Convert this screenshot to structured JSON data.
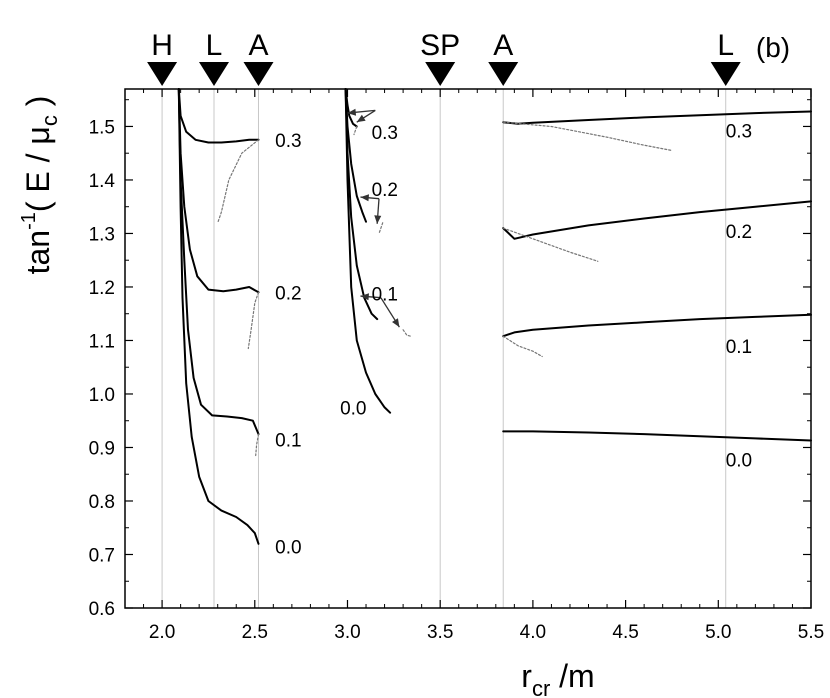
{
  "panel_label": "(b)",
  "chart_data": {
    "type": "line",
    "xlabel_main": "r",
    "xlabel_sub": "cr",
    "xlabel_suffix": " /m",
    "ylabel_main": "tan",
    "ylabel_sup": "-1",
    "ylabel_mid": "( E / μ",
    "ylabel_sub": "c",
    "ylabel_end": " )",
    "xlim": [
      1.8,
      5.5
    ],
    "ylim": [
      0.6,
      1.57
    ],
    "xticks": [
      "2.0",
      "2.5",
      "3.0",
      "3.5",
      "4.0",
      "4.5",
      "5.0",
      "5.5"
    ],
    "yticks": [
      "0.6",
      "0.7",
      "0.8",
      "0.9",
      "1.0",
      "1.1",
      "1.2",
      "1.3",
      "1.4",
      "1.5"
    ],
    "xtick_values": [
      2.0,
      2.5,
      3.0,
      3.5,
      4.0,
      4.5,
      5.0,
      5.5
    ],
    "ytick_values": [
      0.6,
      0.7,
      0.8,
      0.9,
      1.0,
      1.1,
      1.2,
      1.3,
      1.4,
      1.5
    ],
    "markers": [
      {
        "label": "H",
        "x": 2.0
      },
      {
        "label": "L",
        "x": 2.28
      },
      {
        "label": "A",
        "x": 2.52
      },
      {
        "label": "SP",
        "x": 3.5
      },
      {
        "label": "A",
        "x": 3.84
      },
      {
        "label": "L",
        "x": 5.04
      }
    ],
    "series_labels": [
      {
        "text": "0.3",
        "x": 2.61,
        "y": 1.475
      },
      {
        "text": "0.2",
        "x": 2.61,
        "y": 1.19
      },
      {
        "text": "0.1",
        "x": 2.61,
        "y": 0.915
      },
      {
        "text": "0.0",
        "x": 2.61,
        "y": 0.715
      },
      {
        "text": "0.3",
        "x": 3.13,
        "y": 1.49
      },
      {
        "text": "0.2",
        "x": 3.13,
        "y": 1.383
      },
      {
        "text": "0.1",
        "x": 3.13,
        "y": 1.188
      },
      {
        "text": "0.0",
        "x": 2.96,
        "y": 0.975
      },
      {
        "text": "0.3",
        "x": 5.04,
        "y": 1.492
      },
      {
        "text": "0.2",
        "x": 5.04,
        "y": 1.305
      },
      {
        "text": "0.1",
        "x": 5.04,
        "y": 1.09
      },
      {
        "text": "0.0",
        "x": 5.04,
        "y": 0.878
      }
    ],
    "arrows": [
      {
        "from": [
          3.15,
          1.53
        ],
        "to": [
          3.0,
          1.525
        ]
      },
      {
        "from": [
          3.15,
          1.53
        ],
        "to": [
          3.05,
          1.508
        ]
      },
      {
        "from": [
          3.17,
          1.365
        ],
        "to": [
          3.07,
          1.368
        ]
      },
      {
        "from": [
          3.17,
          1.365
        ],
        "to": [
          3.16,
          1.318
        ]
      },
      {
        "from": [
          3.18,
          1.18
        ],
        "to": [
          3.07,
          1.183
        ]
      },
      {
        "from": [
          3.18,
          1.18
        ],
        "to": [
          3.28,
          1.125
        ]
      }
    ],
    "series": [
      {
        "name": "0.0",
        "style": "solid",
        "points": [
          [
            2.09,
            1.57
          ],
          [
            2.1,
            1.35
          ],
          [
            2.11,
            1.18
          ],
          [
            2.13,
            1.02
          ],
          [
            2.16,
            0.92
          ],
          [
            2.2,
            0.845
          ],
          [
            2.25,
            0.8
          ],
          [
            2.32,
            0.782
          ],
          [
            2.4,
            0.77
          ],
          [
            2.46,
            0.755
          ],
          [
            2.5,
            0.74
          ],
          [
            2.52,
            0.72
          ]
        ]
      },
      {
        "name": "0.1",
        "style": "solid",
        "points": [
          [
            2.09,
            1.57
          ],
          [
            2.1,
            1.4
          ],
          [
            2.12,
            1.25
          ],
          [
            2.14,
            1.12
          ],
          [
            2.17,
            1.03
          ],
          [
            2.21,
            0.98
          ],
          [
            2.27,
            0.96
          ],
          [
            2.35,
            0.958
          ],
          [
            2.43,
            0.955
          ],
          [
            2.49,
            0.95
          ],
          [
            2.52,
            0.925
          ]
        ]
      },
      {
        "name": "0.1",
        "style": "dotted",
        "points": [
          [
            2.52,
            0.925
          ],
          [
            2.51,
            0.905
          ],
          [
            2.505,
            0.885
          ]
        ]
      },
      {
        "name": "0.2",
        "style": "solid",
        "points": [
          [
            2.09,
            1.57
          ],
          [
            2.1,
            1.45
          ],
          [
            2.12,
            1.35
          ],
          [
            2.15,
            1.27
          ],
          [
            2.19,
            1.22
          ],
          [
            2.25,
            1.195
          ],
          [
            2.33,
            1.192
          ],
          [
            2.4,
            1.195
          ],
          [
            2.47,
            1.2
          ],
          [
            2.52,
            1.19
          ]
        ]
      },
      {
        "name": "0.2",
        "style": "dotted",
        "points": [
          [
            2.52,
            1.19
          ],
          [
            2.5,
            1.17
          ],
          [
            2.48,
            1.12
          ],
          [
            2.465,
            1.085
          ]
        ]
      },
      {
        "name": "0.3",
        "style": "solid",
        "points": [
          [
            2.09,
            1.57
          ],
          [
            2.1,
            1.52
          ],
          [
            2.13,
            1.49
          ],
          [
            2.18,
            1.475
          ],
          [
            2.25,
            1.47
          ],
          [
            2.32,
            1.47
          ],
          [
            2.4,
            1.472
          ],
          [
            2.47,
            1.475
          ],
          [
            2.52,
            1.475
          ]
        ]
      },
      {
        "name": "0.3",
        "style": "dotted",
        "points": [
          [
            2.52,
            1.475
          ],
          [
            2.43,
            1.45
          ],
          [
            2.36,
            1.4
          ],
          [
            2.32,
            1.34
          ],
          [
            2.3,
            1.32
          ]
        ]
      },
      {
        "name": "0.0",
        "style": "solid",
        "points": [
          [
            2.99,
            1.57
          ],
          [
            3.0,
            1.4
          ],
          [
            3.02,
            1.2
          ],
          [
            3.05,
            1.1
          ],
          [
            3.1,
            1.04
          ],
          [
            3.15,
            1.0
          ],
          [
            3.2,
            0.975
          ],
          [
            3.23,
            0.965
          ]
        ]
      },
      {
        "name": "0.1",
        "style": "solid",
        "points": [
          [
            2.99,
            1.57
          ],
          [
            3.0,
            1.45
          ],
          [
            3.02,
            1.33
          ],
          [
            3.05,
            1.24
          ],
          [
            3.09,
            1.18
          ],
          [
            3.13,
            1.15
          ],
          [
            3.16,
            1.14
          ]
        ]
      },
      {
        "name": "0.1",
        "style": "dotted",
        "points": [
          [
            3.3,
            1.12
          ],
          [
            3.32,
            1.11
          ],
          [
            3.34,
            1.108
          ]
        ]
      },
      {
        "name": "0.2",
        "style": "solid",
        "points": [
          [
            2.99,
            1.57
          ],
          [
            3.0,
            1.5
          ],
          [
            3.02,
            1.43
          ],
          [
            3.05,
            1.37
          ],
          [
            3.08,
            1.34
          ],
          [
            3.1,
            1.322
          ]
        ]
      },
      {
        "name": "0.2",
        "style": "dotted",
        "points": [
          [
            3.19,
            1.32
          ],
          [
            3.18,
            1.31
          ],
          [
            3.17,
            1.3
          ]
        ]
      },
      {
        "name": "0.3",
        "style": "solid",
        "points": [
          [
            2.99,
            1.57
          ],
          [
            3.0,
            1.54
          ],
          [
            3.01,
            1.52
          ],
          [
            3.03,
            1.505
          ],
          [
            3.05,
            1.5
          ]
        ]
      },
      {
        "name": "0.3",
        "style": "dotted",
        "points": [
          [
            3.05,
            1.5
          ],
          [
            3.04,
            1.49
          ],
          [
            3.035,
            1.485
          ]
        ]
      },
      {
        "name": "0.0",
        "style": "solid",
        "points": [
          [
            3.84,
            0.93
          ],
          [
            4.0,
            0.93
          ],
          [
            4.3,
            0.928
          ],
          [
            4.6,
            0.925
          ],
          [
            4.9,
            0.921
          ],
          [
            5.2,
            0.917
          ],
          [
            5.5,
            0.913
          ]
        ]
      },
      {
        "name": "0.1",
        "style": "solid",
        "points": [
          [
            3.84,
            1.108
          ],
          [
            3.9,
            1.115
          ],
          [
            4.0,
            1.12
          ],
          [
            4.3,
            1.128
          ],
          [
            4.6,
            1.134
          ],
          [
            4.9,
            1.14
          ],
          [
            5.2,
            1.144
          ],
          [
            5.5,
            1.148
          ]
        ]
      },
      {
        "name": "0.1",
        "style": "dotted",
        "points": [
          [
            3.84,
            1.108
          ],
          [
            3.92,
            1.09
          ],
          [
            4.0,
            1.08
          ],
          [
            4.05,
            1.07
          ]
        ]
      },
      {
        "name": "0.2",
        "style": "solid",
        "points": [
          [
            3.84,
            1.31
          ],
          [
            3.9,
            1.29
          ],
          [
            4.0,
            1.298
          ],
          [
            4.3,
            1.315
          ],
          [
            4.6,
            1.328
          ],
          [
            4.9,
            1.34
          ],
          [
            5.2,
            1.35
          ],
          [
            5.5,
            1.36
          ]
        ]
      },
      {
        "name": "0.2",
        "style": "dotted",
        "points": [
          [
            3.84,
            1.31
          ],
          [
            4.0,
            1.29
          ],
          [
            4.2,
            1.265
          ],
          [
            4.35,
            1.248
          ]
        ]
      },
      {
        "name": "0.3",
        "style": "solid",
        "points": [
          [
            3.84,
            1.508
          ],
          [
            3.92,
            1.505
          ],
          [
            4.0,
            1.507
          ],
          [
            4.3,
            1.512
          ],
          [
            4.6,
            1.517
          ],
          [
            4.9,
            1.521
          ],
          [
            5.2,
            1.525
          ],
          [
            5.5,
            1.528
          ]
        ]
      },
      {
        "name": "0.3",
        "style": "dotted",
        "points": [
          [
            3.84,
            1.508
          ],
          [
            4.1,
            1.5
          ],
          [
            4.4,
            1.48
          ],
          [
            4.6,
            1.465
          ],
          [
            4.75,
            1.455
          ]
        ]
      }
    ]
  }
}
